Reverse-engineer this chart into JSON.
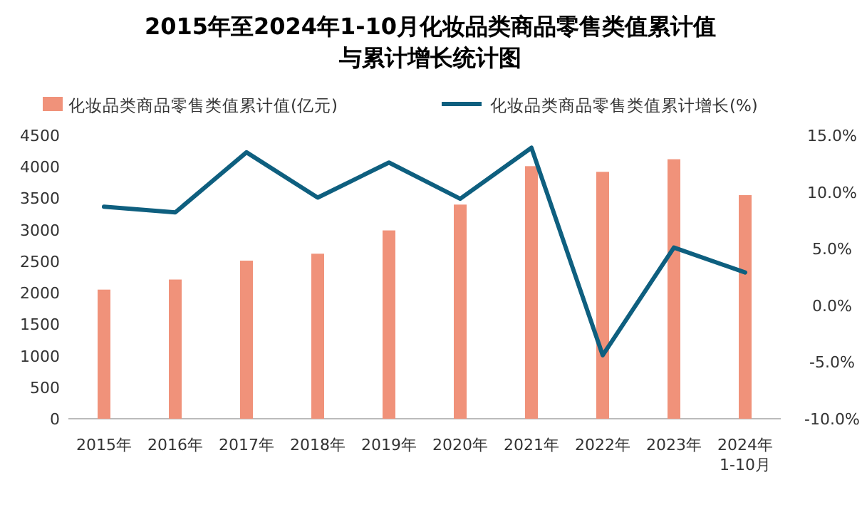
{
  "chart_data": {
    "type": "bar",
    "title": "2015年至2024年1-10月化妆品类商品零售类值累计值与累计增长统计图",
    "categories": [
      "2015年",
      "2016年",
      "2017年",
      "2018年",
      "2019年",
      "2020年",
      "2021年",
      "2022年",
      "2023年",
      "2024年\n1-10月"
    ],
    "series": [
      {
        "name": "化妆品类商品零售类值累计值(亿元)",
        "color": "#f0927a",
        "values": [
          2050,
          2210,
          2510,
          2620,
          2990,
          3400,
          4010,
          3920,
          4120,
          3550
        ]
      },
      {
        "name": "化妆品类商品零售类值累计增长(%)",
        "type": "line",
        "axis": "y2",
        "color": "#0e5f7f",
        "values": [
          8.7,
          8.2,
          13.5,
          9.5,
          12.6,
          9.4,
          13.9,
          -4.4,
          5.1,
          2.9
        ]
      }
    ],
    "ylim": [
      0,
      4500
    ],
    "yticks": [
      0,
      500,
      1000,
      1500,
      2000,
      2500,
      3000,
      3500,
      4000,
      4500
    ],
    "y2lim": [
      -10,
      15
    ],
    "y2ticks": [
      {
        "value": -10,
        "label": "-10.0%"
      },
      {
        "value": -5,
        "label": "-5.0%"
      },
      {
        "value": 0,
        "label": "0.0%"
      },
      {
        "value": 5,
        "label": "5.0%"
      },
      {
        "value": 10,
        "label": "10.0%"
      },
      {
        "value": 15,
        "label": "15.0%"
      }
    ],
    "legend": "top",
    "grid": false,
    "marker": "none"
  }
}
